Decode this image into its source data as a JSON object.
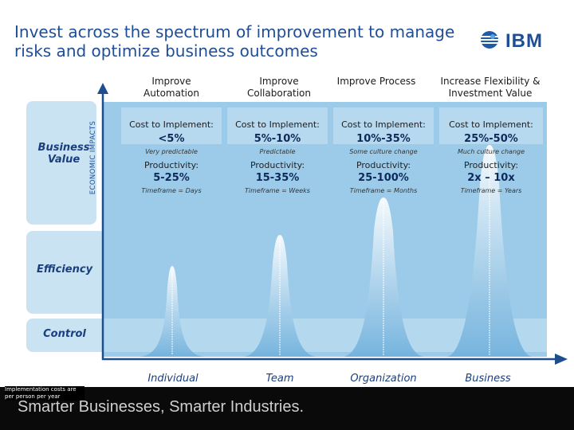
{
  "title": "Invest across the spectrum of improvement to manage risks and optimize business outcomes",
  "logo_text": "IBM",
  "axis_label": "ECONOMIC IMPACTS",
  "levels": {
    "business_value": "Business Value",
    "efficiency": "Efficiency",
    "control": "Control"
  },
  "cost_label": "Cost to Implement:",
  "productivity_label": "Productivity:",
  "columns": [
    {
      "heading": "Improve Automation",
      "cost": "<5%",
      "cost_note": "Very predictable",
      "productivity": "5-25%",
      "timeframe": "Timeframe = Days",
      "scope": "Individual"
    },
    {
      "heading": "Improve Collaboration",
      "cost": "5%-10%",
      "cost_note": "Predictable",
      "productivity": "15-35%",
      "timeframe": "Timeframe = Weeks",
      "scope": "Team"
    },
    {
      "heading": "Improve Process",
      "cost": "10%-35%",
      "cost_note": "Some culture change",
      "productivity": "25-100%",
      "timeframe": "Timeframe = Months",
      "scope": "Organization"
    },
    {
      "heading": "Increase Flexibility & Investment Value",
      "cost": "25%-50%",
      "cost_note": "Much culture change",
      "productivity": "2x – 10x",
      "timeframe": "Timeframe = Years",
      "scope": "Business"
    }
  ],
  "footnote": "Implementation costs are per person per year",
  "footer": "Smarter Businesses, Smarter Industries.",
  "colors": {
    "title": "#1f4e97",
    "panel": "#9ccbe9",
    "band": "#c9e3f3",
    "arrow": "#1d4f8f"
  }
}
